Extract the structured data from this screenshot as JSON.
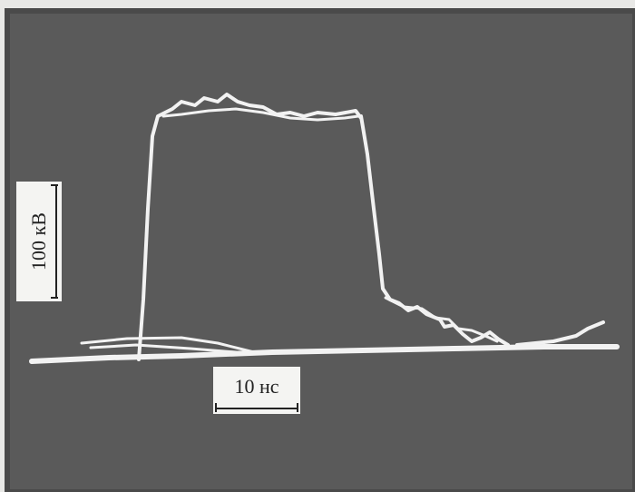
{
  "scale_bars": {
    "voltage": "100 кВ",
    "time": "10 нс"
  }
}
